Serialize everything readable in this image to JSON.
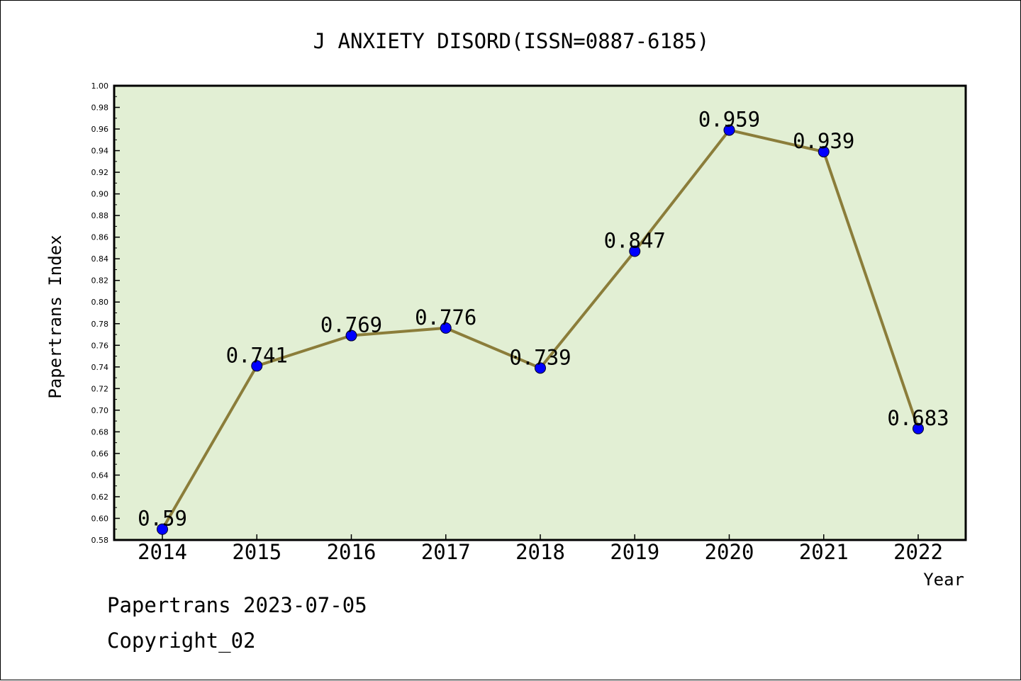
{
  "chart_data": {
    "type": "line",
    "title": "J ANXIETY DISORD(ISSN=0887-6185)",
    "xlabel": "Year",
    "ylabel": "Papertrans Index",
    "categories": [
      "2014",
      "2015",
      "2016",
      "2017",
      "2018",
      "2019",
      "2020",
      "2021",
      "2022"
    ],
    "series": [
      {
        "values": [
          0.59,
          0.741,
          0.769,
          0.776,
          0.739,
          0.847,
          0.959,
          0.939,
          0.683
        ],
        "labels": [
          "0.59",
          "0.741",
          "0.769",
          "0.776",
          "0.739",
          "0.847",
          "0.959",
          "0.939",
          "0.683"
        ]
      }
    ],
    "ylim": [
      0.58,
      1.0
    ],
    "yticks": [
      "0.58",
      "0.60",
      "0.62",
      "0.64",
      "0.66",
      "0.68",
      "0.70",
      "0.72",
      "0.74",
      "0.76",
      "0.78",
      "0.80",
      "0.82",
      "0.84",
      "0.86",
      "0.88",
      "0.90",
      "0.92",
      "0.94",
      "0.96",
      "0.98",
      "1.00"
    ],
    "grid": false,
    "colors": {
      "plot_background": "#e2efd4",
      "line": "#8b7d3a",
      "marker": "#0000ff"
    }
  },
  "footer": {
    "line1": "Papertrans 2023-07-05",
    "line2": "Copyright_02"
  }
}
